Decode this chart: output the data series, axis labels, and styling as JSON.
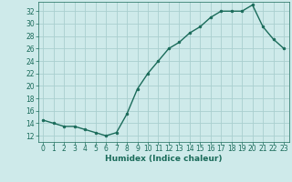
{
  "x": [
    0,
    1,
    2,
    3,
    4,
    5,
    6,
    7,
    8,
    9,
    10,
    11,
    12,
    13,
    14,
    15,
    16,
    17,
    18,
    19,
    20,
    21,
    22,
    23
  ],
  "y": [
    14.5,
    14.0,
    13.5,
    13.5,
    13.0,
    12.5,
    12.0,
    12.5,
    15.5,
    19.5,
    22.0,
    24.0,
    26.0,
    27.0,
    28.5,
    29.5,
    31.0,
    32.0,
    32.0,
    32.0,
    33.0,
    29.5,
    27.5,
    26.0
  ],
  "line_color": "#1a6b5a",
  "marker": "o",
  "marker_size": 2.0,
  "bg_color": "#ceeaea",
  "grid_color": "#aacfcf",
  "xlabel": "Humidex (Indice chaleur)",
  "yticks": [
    12,
    14,
    16,
    18,
    20,
    22,
    24,
    26,
    28,
    30,
    32
  ],
  "ylim": [
    11.0,
    33.5
  ],
  "xlim": [
    -0.5,
    23.5
  ],
  "xticks": [
    0,
    1,
    2,
    3,
    4,
    5,
    6,
    7,
    8,
    9,
    10,
    11,
    12,
    13,
    14,
    15,
    16,
    17,
    18,
    19,
    20,
    21,
    22,
    23
  ],
  "tick_fontsize": 5.5,
  "label_fontsize": 6.5,
  "line_width": 1.0
}
